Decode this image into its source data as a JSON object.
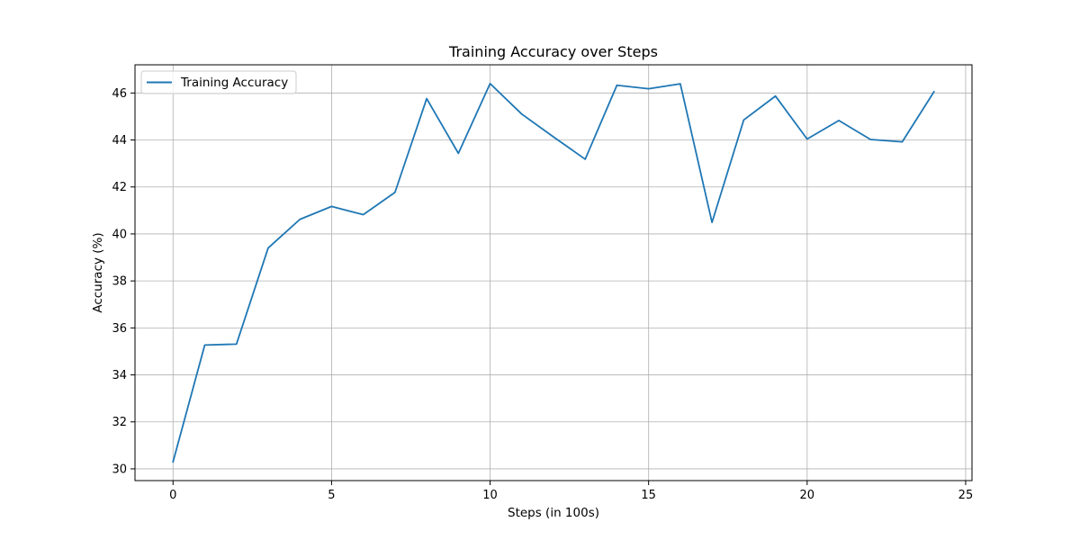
{
  "chart_data": {
    "type": "line",
    "title": "Training Accuracy over Steps",
    "xlabel": "Steps (in 100s)",
    "ylabel": "Accuracy (%)",
    "xlim": [
      -1.2,
      25.2
    ],
    "ylim": [
      29.5,
      47.2
    ],
    "xticks": [
      0,
      5,
      10,
      15,
      20,
      25
    ],
    "yticks": [
      30,
      32,
      34,
      36,
      38,
      40,
      42,
      44,
      46
    ],
    "grid": true,
    "legend_position": "top-left",
    "series": [
      {
        "name": "Training Accuracy",
        "color": "#1f77b4",
        "x": [
          0,
          1,
          2,
          3,
          4,
          5,
          6,
          7,
          8,
          9,
          10,
          11,
          12,
          13,
          14,
          15,
          16,
          17,
          18,
          19,
          20,
          21,
          22,
          23,
          24
        ],
        "y": [
          30.3,
          35.27,
          35.31,
          39.4,
          40.62,
          41.17,
          40.82,
          41.77,
          45.76,
          43.43,
          46.4,
          45.1,
          44.13,
          43.18,
          46.33,
          46.18,
          46.39,
          40.49,
          44.85,
          45.87,
          44.04,
          44.83,
          44.02,
          43.92,
          46.05
        ]
      }
    ]
  }
}
